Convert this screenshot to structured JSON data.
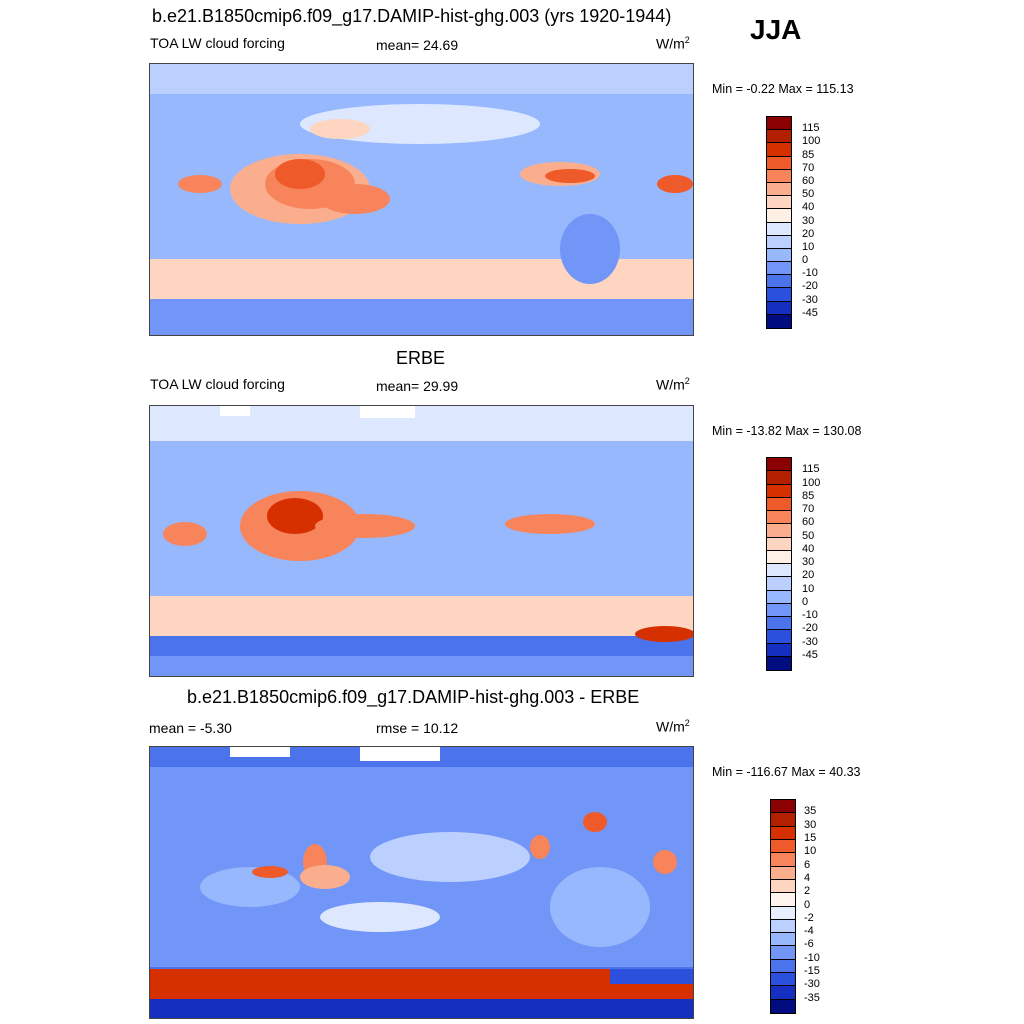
{
  "season": "JJA",
  "panels": [
    {
      "title": "b.e21.B1850cmip6.f09_g17.DAMIP-hist-ghg.003 (yrs 1920-1944)",
      "left_label": "TOA LW cloud forcing",
      "mid_label": "mean=  24.69",
      "units_base": "W/m",
      "units_exp": "2",
      "minmax": "Min =  -0.22 Max = 115.13",
      "kind": "model"
    },
    {
      "title": "ERBE",
      "left_label": "TOA LW cloud forcing",
      "mid_label": "mean=  29.99",
      "units_base": "W/m",
      "units_exp": "2",
      "minmax": "Min = -13.82 Max = 130.08",
      "kind": "obs"
    },
    {
      "title": "b.e21.B1850cmip6.f09_g17.DAMIP-hist-ghg.003 - ERBE",
      "left_label": "mean =  -5.30",
      "mid_label": "rmse =  10.12",
      "units_base": "W/m",
      "units_exp": "2",
      "minmax": "Min = -116.67 Max =  40.33",
      "kind": "diff"
    }
  ],
  "colorbars": {
    "main": {
      "labels": [
        "115",
        "100",
        "85",
        "70",
        "60",
        "50",
        "40",
        "30",
        "20",
        "10",
        "0",
        "-10",
        "-20",
        "-30",
        "-45"
      ],
      "colors": [
        "#8b0000",
        "#b22000",
        "#d63000",
        "#ee5a2a",
        "#f7845b",
        "#fbae8e",
        "#fdd5c0",
        "#fff0e6",
        "#dde8ff",
        "#bcd0ff",
        "#98b8fd",
        "#7196f7",
        "#4a73ec",
        "#2a50dd",
        "#1530c0",
        "#000c80"
      ]
    },
    "diff": {
      "labels": [
        "35",
        "30",
        "15",
        "10",
        "6",
        "4",
        "2",
        "0",
        "-2",
        "-4",
        "-6",
        "-10",
        "-15",
        "-30",
        "-35"
      ],
      "colors": [
        "#8b0000",
        "#b22000",
        "#d63000",
        "#ee5a2a",
        "#f7845b",
        "#fbae8e",
        "#fdd5c0",
        "#fff5ee",
        "#e8efff",
        "#bcd0ff",
        "#98b8fd",
        "#7196f7",
        "#4a73ec",
        "#2a50dd",
        "#1530c0",
        "#000c80"
      ]
    }
  }
}
